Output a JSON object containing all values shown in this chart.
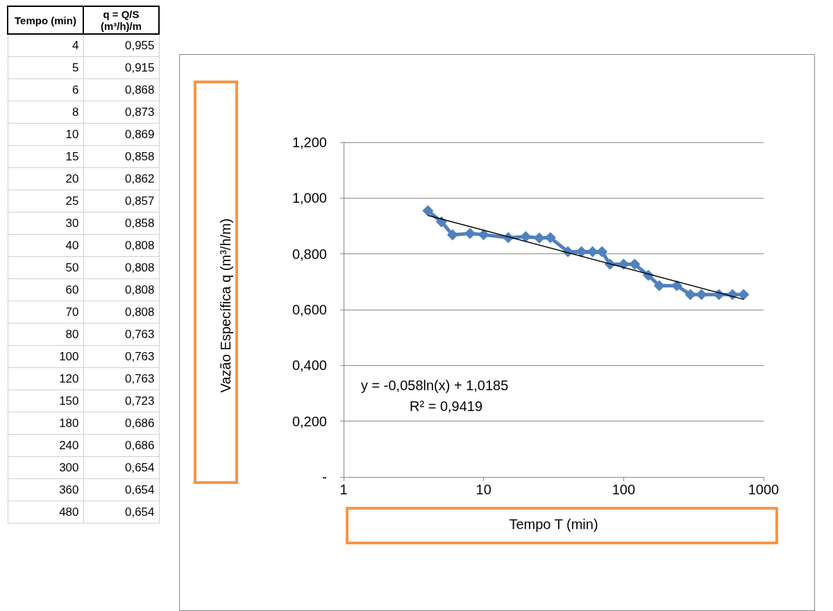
{
  "chart_data": [
    {
      "type": "heatmap",
      "ylabel": "Tempo (min)",
      "categories": [
        "q = Q/S (m³/h)/m"
      ],
      "y_categories": [
        "4",
        "5",
        "6",
        "8",
        "10",
        "15",
        "20",
        "25",
        "30",
        "40",
        "50",
        "60",
        "70",
        "80",
        "100",
        "120",
        "150",
        "180",
        "240",
        "300",
        "360",
        "480"
      ],
      "cells": [
        [
          0.955
        ],
        [
          0.915
        ],
        [
          0.868
        ],
        [
          0.873
        ],
        [
          0.869
        ],
        [
          0.858
        ],
        [
          0.862
        ],
        [
          0.857
        ],
        [
          0.858
        ],
        [
          0.808
        ],
        [
          0.808
        ],
        [
          0.808
        ],
        [
          0.808
        ],
        [
          0.763
        ],
        [
          0.763
        ],
        [
          0.763
        ],
        [
          0.723
        ],
        [
          0.686
        ],
        [
          0.686
        ],
        [
          0.654
        ],
        [
          0.654
        ],
        [
          0.654
        ]
      ],
      "cell_labels": [
        [
          "0,955"
        ],
        [
          "0,915"
        ],
        [
          "0,868"
        ],
        [
          "0,873"
        ],
        [
          "0,869"
        ],
        [
          "0,858"
        ],
        [
          "0,862"
        ],
        [
          "0,857"
        ],
        [
          "0,858"
        ],
        [
          "0,808"
        ],
        [
          "0,808"
        ],
        [
          "0,808"
        ],
        [
          "0,808"
        ],
        [
          "0,763"
        ],
        [
          "0,763"
        ],
        [
          "0,763"
        ],
        [
          "0,723"
        ],
        [
          "0,686"
        ],
        [
          "0,686"
        ],
        [
          "0,654"
        ],
        [
          "0,654"
        ],
        [
          "0,654"
        ]
      ]
    },
    {
      "type": "line",
      "xlabel": "Tempo T (min)",
      "ylabel": "Vazão Específica q (m³/h/m)",
      "annotations": [
        "y = -0,058ln(x) + 1,0185",
        "R² = 0,9419"
      ],
      "log": "x",
      "xlim": [
        1,
        1000
      ],
      "xticks": [
        1,
        10,
        100,
        1000
      ],
      "ylim": [
        0,
        1.2
      ],
      "yticks": [
        {
          "value": 0,
          "label": "-"
        },
        {
          "value": 0.2,
          "label": "0,200"
        },
        {
          "value": 0.4,
          "label": "0,400"
        },
        {
          "value": 0.6,
          "label": "0,600"
        },
        {
          "value": 0.8,
          "label": "0,800"
        },
        {
          "value": 1,
          "label": "1,000"
        },
        {
          "value": 1.2,
          "label": "1,200"
        }
      ],
      "grid": "y",
      "series": [
        {
          "type": "line",
          "color": "#4f81bd",
          "marker": "diamond",
          "x": [
            4,
            5,
            6,
            8,
            10,
            15,
            20,
            25,
            30,
            40,
            50,
            60,
            70,
            80,
            100,
            120,
            150,
            180,
            240,
            300,
            360,
            480,
            600,
            720
          ],
          "values": [
            0.955,
            0.915,
            0.868,
            0.873,
            0.869,
            0.858,
            0.862,
            0.857,
            0.858,
            0.808,
            0.808,
            0.808,
            0.808,
            0.763,
            0.763,
            0.763,
            0.723,
            0.686,
            0.686,
            0.654,
            0.654,
            0.654,
            0.654,
            0.654
          ]
        },
        {
          "type": "line",
          "color": "#000000",
          "marker": "none",
          "x": [
            4,
            720
          ],
          "values": [
            0.938,
            0.637
          ]
        }
      ]
    }
  ]
}
